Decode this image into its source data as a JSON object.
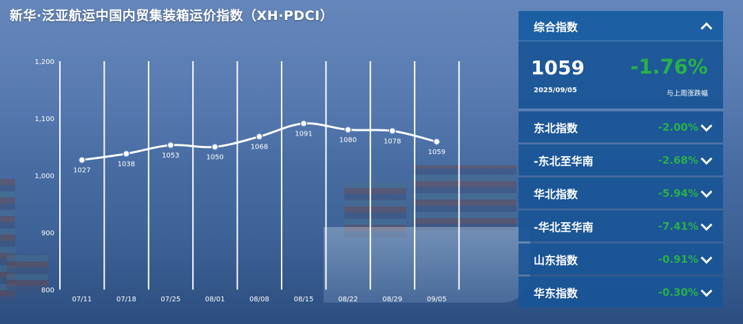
{
  "title": "新华·泛亚航运中国内贸集装箱运价指数（XH·PDCI）",
  "chart_data": {
    "type": "line",
    "title": "",
    "xlabel": "",
    "ylabel": "",
    "categories": [
      "07/11",
      "07/18",
      "07/25",
      "08/01",
      "08/08",
      "08/15",
      "08/22",
      "08/29",
      "09/05"
    ],
    "values": [
      1027,
      1038,
      1053,
      1050,
      1068,
      1091,
      1080,
      1078,
      1059
    ],
    "ylim": [
      800,
      1200
    ],
    "yticks": [
      800,
      900,
      "1,000",
      "1,100",
      "1,200"
    ],
    "grid": "vertical",
    "legend": "none"
  },
  "panel": {
    "header_label": "综合指数",
    "composite_value": "1059",
    "composite_date": "2025/09/05",
    "composite_change": "-1.76%",
    "composite_change_label": "与上周涨跌幅",
    "change_color": "#29b04a",
    "rows": [
      {
        "label": "东北指数",
        "value": "-2.00%"
      },
      {
        "label": "-东北至华南",
        "value": "-2.68%"
      },
      {
        "label": "华北指数",
        "value": "-5.94%"
      },
      {
        "label": "-华北至华南",
        "value": "-7.41%"
      },
      {
        "label": "山东指数",
        "value": "-0.91%"
      },
      {
        "label": "华东指数",
        "value": "-0.30%"
      }
    ]
  }
}
